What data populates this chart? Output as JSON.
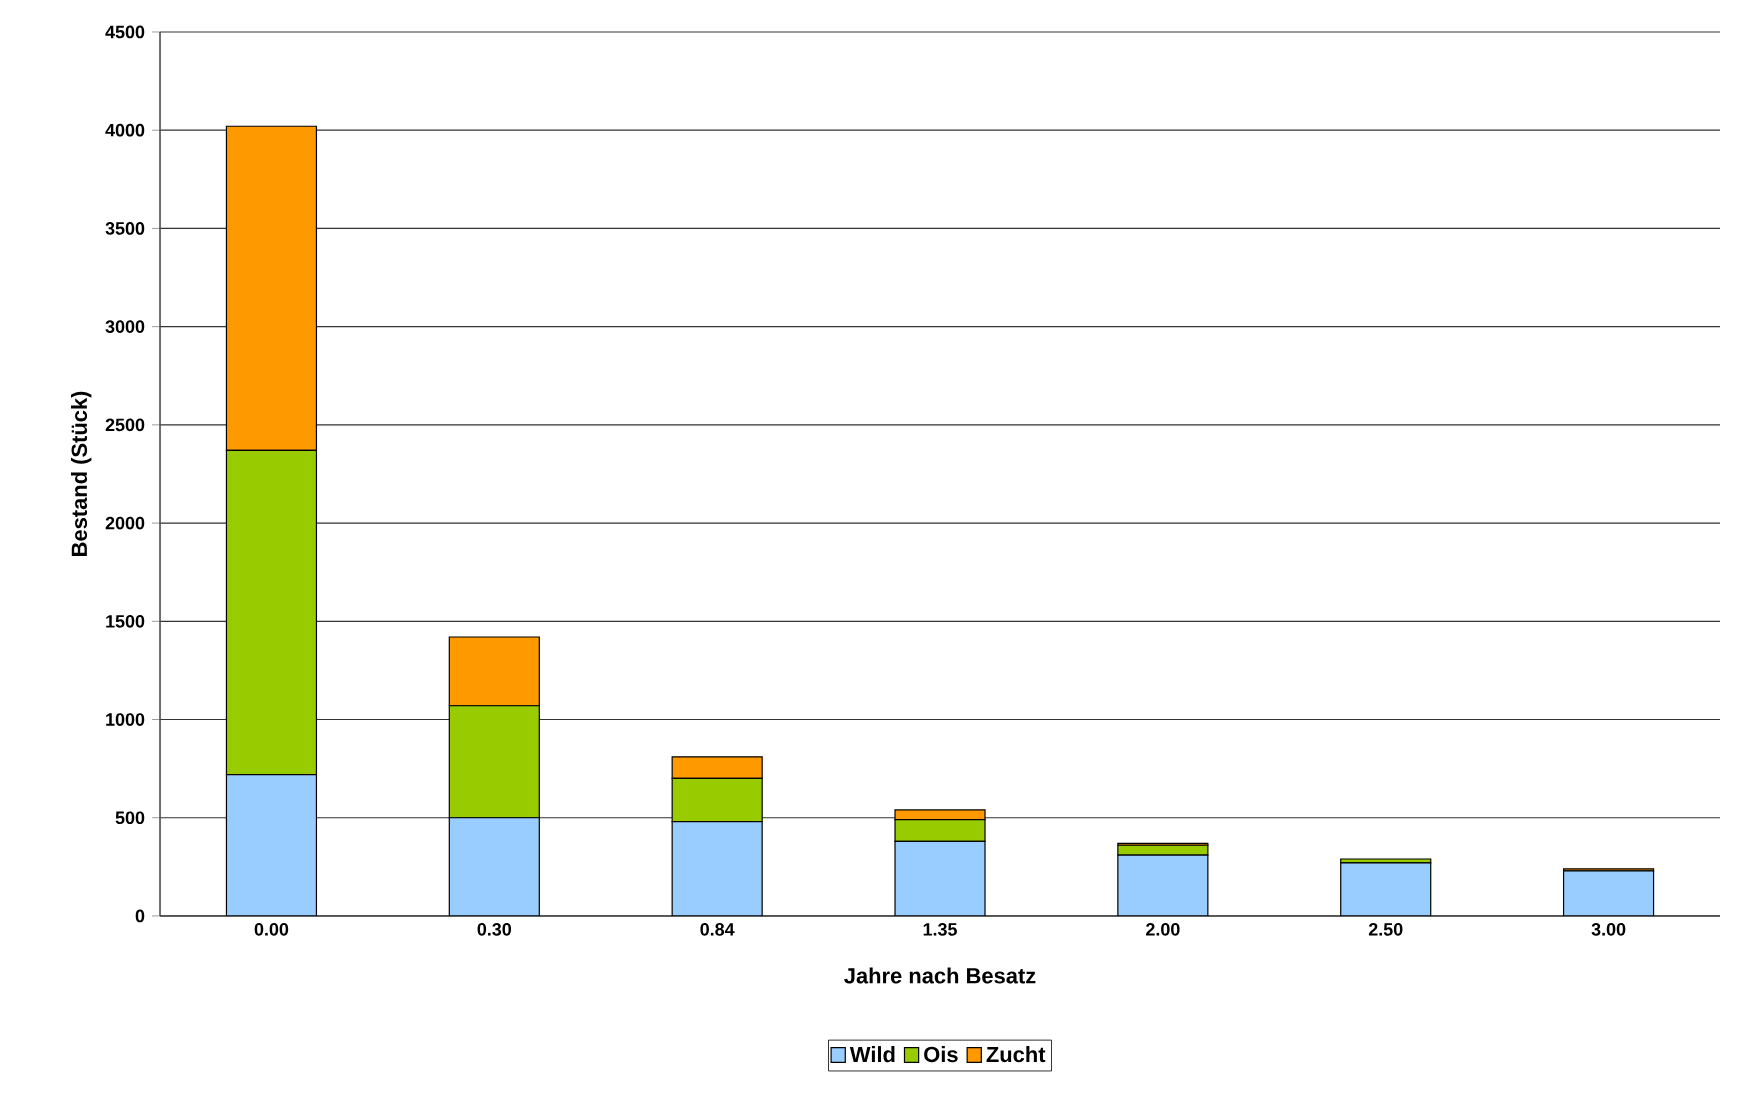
{
  "chart_data": {
    "type": "bar",
    "stacked": true,
    "xlabel": "Jahre nach Besatz",
    "ylabel": "Bestand (Stück)",
    "categories": [
      "0.00",
      "0.30",
      "0.84",
      "1.35",
      "2.00",
      "2.50",
      "3.00"
    ],
    "series": [
      {
        "name": "Wild",
        "color": "#99ccff",
        "values": [
          720,
          500,
          480,
          380,
          310,
          270,
          230
        ]
      },
      {
        "name": "Ois",
        "color": "#99cc00",
        "values": [
          1650,
          570,
          220,
          110,
          50,
          20,
          null
        ]
      },
      {
        "name": "Zucht",
        "color": "#ff9900",
        "values": [
          1650,
          350,
          110,
          50,
          10,
          null,
          10
        ]
      }
    ],
    "ylim": [
      0,
      4500
    ],
    "yticks": [
      0,
      500,
      1000,
      1500,
      2000,
      2500,
      3000,
      3500,
      4000,
      4500
    ],
    "grid": "y",
    "legend": "bottom"
  }
}
